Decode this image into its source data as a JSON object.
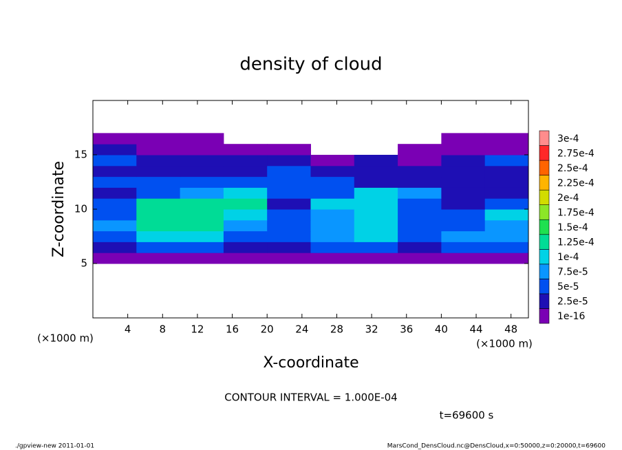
{
  "chart_data": {
    "type": "heatmap",
    "title": "density of cloud",
    "xlabel": "X-coordinate",
    "ylabel": "Z-coordinate",
    "unit_label": "(×1000 m)",
    "xlim": [
      0,
      50
    ],
    "ylim": [
      0,
      20
    ],
    "xticks": [
      4,
      8,
      12,
      16,
      20,
      24,
      28,
      32,
      36,
      40,
      44,
      48
    ],
    "yticks": [
      5,
      10,
      15
    ],
    "x": [
      2.5,
      7.5,
      12.5,
      17.5,
      22.5,
      27.5,
      32.5,
      37.5,
      42.5,
      47.5
    ],
    "y": [
      5.5,
      6.5,
      7.5,
      8.5,
      9.5,
      10.5,
      11.5,
      12.5,
      13.5,
      14.5,
      15.5,
      16.5
    ],
    "z": [
      [
        1e-05,
        1e-05,
        1e-05,
        1e-05,
        1e-05,
        1e-05,
        1e-05,
        1e-05,
        1e-05,
        1e-05
      ],
      [
        4e-05,
        5e-05,
        5e-05,
        4e-05,
        4e-05,
        5e-05,
        5e-05,
        4e-05,
        5e-05,
        5e-05
      ],
      [
        6e-05,
        0.00012,
        0.00011,
        6e-05,
        7e-05,
        9e-05,
        0.0001,
        6e-05,
        8e-05,
        9e-05
      ],
      [
        8e-05,
        0.00014,
        0.000135,
        8e-05,
        7e-05,
        9e-05,
        0.00011,
        6e-05,
        6e-05,
        9e-05
      ],
      [
        7e-05,
        0.00014,
        0.000135,
        0.00012,
        6e-05,
        8e-05,
        0.00011,
        6e-05,
        5e-05,
        0.0001
      ],
      [
        5e-05,
        0.00013,
        0.00013,
        0.000125,
        3e-05,
        0.0001,
        0.00012,
        6e-05,
        4e-05,
        5e-05
      ],
      [
        4e-05,
        7e-05,
        9e-05,
        0.00011,
        5e-05,
        6e-05,
        0.00012,
        8e-05,
        4e-05,
        4e-05
      ],
      [
        5e-05,
        5e-05,
        5e-05,
        6e-05,
        6e-05,
        5e-05,
        4e-05,
        4e-05,
        3e-05,
        4e-05
      ],
      [
        4e-05,
        4e-05,
        4e-05,
        4e-05,
        5e-05,
        3e-05,
        3e-05,
        3e-05,
        3e-05,
        4e-05
      ],
      [
        6e-05,
        3e-05,
        3e-05,
        3e-05,
        3e-05,
        2e-05,
        3e-05,
        2e-05,
        3e-05,
        5e-05
      ],
      [
        3e-05,
        2e-05,
        2e-05,
        1e-05,
        1e-05,
        null,
        null,
        1e-05,
        1e-05,
        2e-05
      ],
      [
        1e-05,
        1e-05,
        1e-05,
        null,
        null,
        null,
        null,
        null,
        1e-05,
        1e-05
      ]
    ],
    "levels": [
      {
        "value": 1e-16,
        "label": "1e-16"
      },
      {
        "value": 2.5e-05,
        "label": "2.5e-5"
      },
      {
        "value": 5e-05,
        "label": "5e-5"
      },
      {
        "value": 7.5e-05,
        "label": "7.5e-5"
      },
      {
        "value": 0.0001,
        "label": "1e-4"
      },
      {
        "value": 0.000125,
        "label": "1.25e-4"
      },
      {
        "value": 0.00015,
        "label": "1.5e-4"
      },
      {
        "value": 0.000175,
        "label": "1.75e-4"
      },
      {
        "value": 0.0002,
        "label": "2e-4"
      },
      {
        "value": 0.000225,
        "label": "2.25e-4"
      },
      {
        "value": 0.00025,
        "label": "2.5e-4"
      },
      {
        "value": 0.000275,
        "label": "2.75e-4"
      },
      {
        "value": 0.0003,
        "label": "3e-4"
      }
    ],
    "colors": [
      "#7a00b4",
      "#1e0fb4",
      "#0050f0",
      "#0a96ff",
      "#00d2e6",
      "#00dc96",
      "#1ee050",
      "#8ce628",
      "#d2dc00",
      "#ffb400",
      "#ff6400",
      "#ff2828",
      "#ff8c8c"
    ],
    "contour_interval": "CONTOUR INTERVAL = 1.000E-04",
    "time_label": "t=69600 s",
    "footer_left": "./gpview-new  2011-01-01",
    "footer_right": "MarsCond_DensCloud.nc@DensCloud,x=0:50000,z=0:20000,t=69600"
  }
}
